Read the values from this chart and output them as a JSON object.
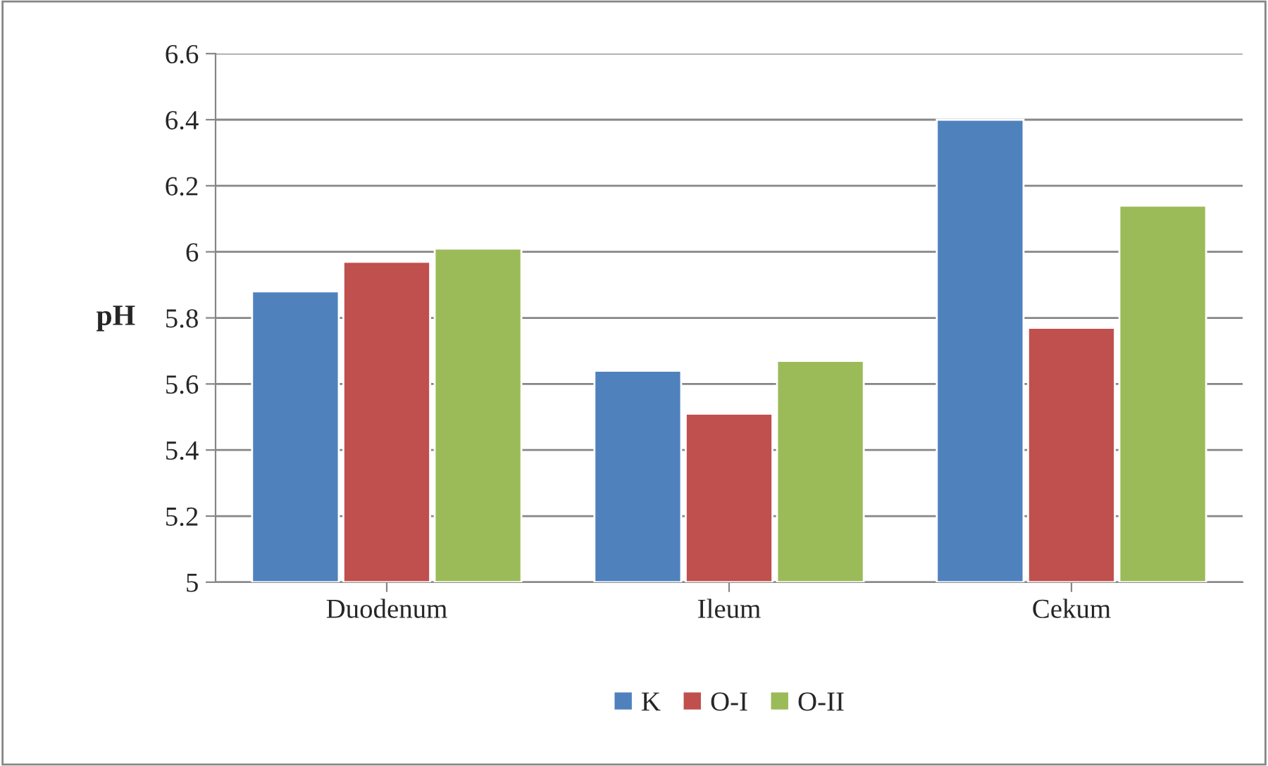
{
  "chart_data": {
    "type": "bar",
    "ylabel": "pH",
    "categories": [
      "Duodenum",
      "Ileum",
      "Cekum"
    ],
    "series": [
      {
        "name": "K",
        "color": "#4f81bd",
        "values": [
          5.88,
          5.64,
          6.4
        ]
      },
      {
        "name": "O-I",
        "color": "#c0504d",
        "values": [
          5.97,
          5.51,
          5.77
        ]
      },
      {
        "name": "O-II",
        "color": "#9bbb59",
        "values": [
          6.01,
          5.67,
          6.14
        ]
      }
    ],
    "ylim": [
      5,
      6.6
    ],
    "yticks": [
      5,
      5.2,
      5.4,
      5.6,
      5.8,
      6,
      6.2,
      6.4,
      6.6
    ],
    "grid": "y",
    "legend": "bottom"
  }
}
